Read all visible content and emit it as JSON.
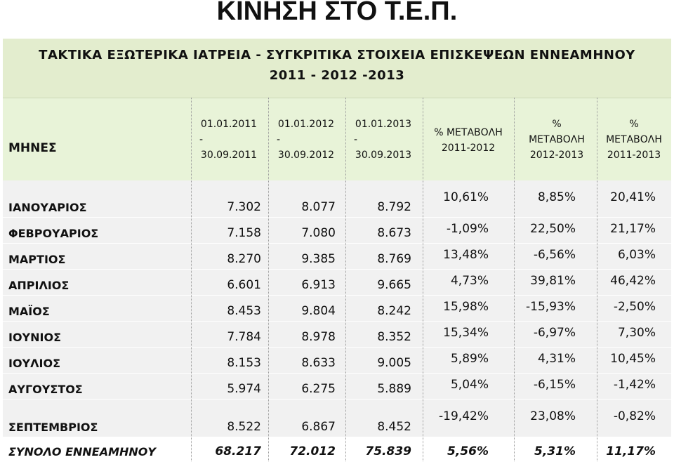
{
  "page_title": "ΚΙΝΗΣΗ ΣΤΟ Τ.Ε.Π.",
  "banner": {
    "line1": "ΤΑΚΤΙΚΑ ΕΞΩΤΕΡΙΚΑ ΙΑΤΡΕΙΑ - ΣΥΓΚΡΙΤΙΚΑ ΣΤΟΙΧΕΙΑ ΕΠΙΣΚΕΨΕΩΝ ΕΝΝΕΑΜΗΝΟΥ",
    "line2": "2011 - 2012 -2013"
  },
  "header": {
    "months": "ΜΗΝΕΣ",
    "col_2011": [
      "01.01.2011",
      "-",
      "30.09.2011"
    ],
    "col_2012": [
      "01.01.2012",
      "-",
      "30.09.2012"
    ],
    "col_2013": [
      "01.01.2013",
      "-",
      "30.09.2013"
    ],
    "pct_11_12": [
      "% ΜΕΤΑΒΟΛΗ",
      "2011-2012"
    ],
    "pct_12_13": [
      "%",
      "ΜΕΤΑΒΟΛΗ",
      "2012-2013"
    ],
    "pct_11_13": [
      "%",
      "ΜΕΤΑΒΟΛΗ",
      "2011-2013"
    ]
  },
  "rows": [
    {
      "month": "ΙΑΝΟΥΑΡΙΟΣ",
      "v2011": "7.302",
      "v2012": "8.077",
      "v2013": "8.792",
      "p1": "10,61%",
      "p2": "8,85%",
      "p3": "20,41%"
    },
    {
      "month": "ΦΕΒΡΟΥΑΡΙΟΣ",
      "v2011": "7.158",
      "v2012": "7.080",
      "v2013": "8.673",
      "p1": "-1,09%",
      "p2": "22,50%",
      "p3": "21,17%"
    },
    {
      "month": "ΜΑΡΤΙΟΣ",
      "v2011": "8.270",
      "v2012": "9.385",
      "v2013": "8.769",
      "p1": "13,48%",
      "p2": "-6,56%",
      "p3": "6,03%"
    },
    {
      "month": "ΑΠΡΙΛΙΟΣ",
      "v2011": "6.601",
      "v2012": "6.913",
      "v2013": "9.665",
      "p1": "4,73%",
      "p2": "39,81%",
      "p3": "46,42%"
    },
    {
      "month": "ΜΑΪΟΣ",
      "v2011": "8.453",
      "v2012": "9.804",
      "v2013": "8.242",
      "p1": "15,98%",
      "p2": "-15,93%",
      "p3": "-2,50%"
    },
    {
      "month": "ΙΟΥΝΙΟΣ",
      "v2011": "7.784",
      "v2012": "8.978",
      "v2013": "8.352",
      "p1": "15,34%",
      "p2": "-6,97%",
      "p3": "7,30%"
    },
    {
      "month": "ΙΟΥΛΙΟΣ",
      "v2011": "8.153",
      "v2012": "8.633",
      "v2013": "9.005",
      "p1": "5,89%",
      "p2": "4,31%",
      "p3": "10,45%"
    },
    {
      "month": "ΑΥΓΟΥΣΤΟΣ",
      "v2011": "5.974",
      "v2012": "6.275",
      "v2013": "5.889",
      "p1": "5,04%",
      "p2": "-6,15%",
      "p3": "-1,42%"
    },
    {
      "month": "ΣΕΠΤΕΜΒΡΙΟΣ",
      "v2011": "8.522",
      "v2012": "6.867",
      "v2013": "8.452",
      "p1": "-19,42%",
      "p2": "23,08%",
      "p3": "-0,82%"
    }
  ],
  "total": {
    "month": "ΣΥΝΟΛΟ ΕΝΝΕΑΜΗΝΟΥ",
    "v2011": "68.217",
    "v2012": "72.012",
    "v2013": "75.839",
    "p1": "5,56%",
    "p2": "5,31%",
    "p3": "11,17%"
  }
}
